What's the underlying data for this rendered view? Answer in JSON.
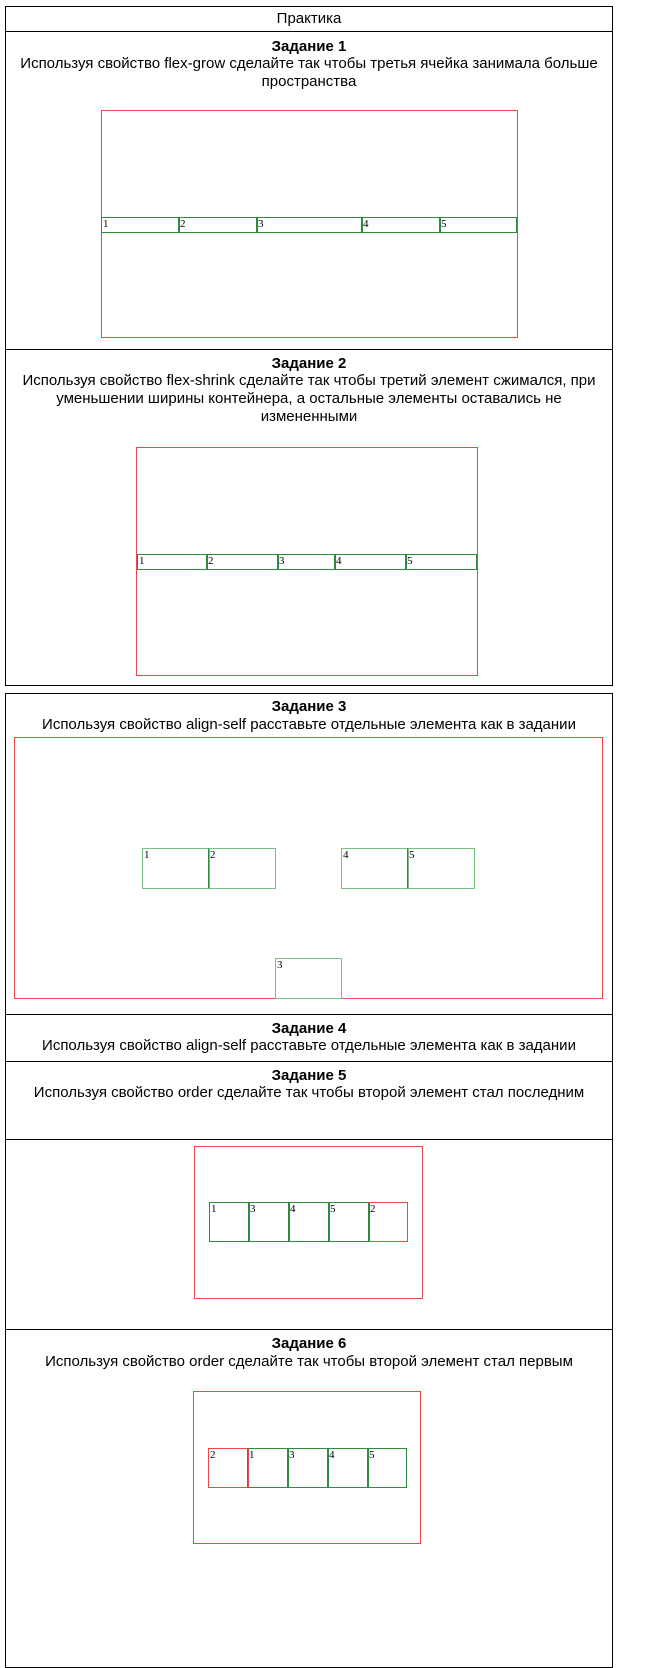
{
  "header": {
    "title": "Практика"
  },
  "tasks": [
    {
      "title": "Задание 1",
      "desc": "Используя свойство flex-grow сделайте так чтобы третья ячейка занимала больше пространства",
      "items": [
        "1",
        "2",
        "3",
        "4",
        "5"
      ]
    },
    {
      "title": "Задание 2",
      "desc": "Используя свойство flex-shrink сделайте так чтобы третий элемент сжимался, при уменьшении ширины контейнера, а остальные элементы оставались не измененными",
      "items": [
        "1",
        "2",
        "3",
        "4",
        "5"
      ]
    },
    {
      "title": "Задание 3",
      "desc": "Используя свойство align-self расставьте отдельные элемента как в задании",
      "items": [
        "1",
        "2",
        "4",
        "5",
        "3"
      ]
    },
    {
      "title": "Задание 4",
      "desc": "Используя свойство align-self расставьте отдельные элемента как в задании"
    },
    {
      "title": "Задание 5",
      "desc": "Используя свойство order сделайте так чтобы второй элемент стал последним",
      "items": [
        "1",
        "3",
        "4",
        "5",
        "2"
      ]
    },
    {
      "title": "Задание 6",
      "desc": "Используя свойство order сделайте так чтобы второй элемент стал первым",
      "items": [
        "2",
        "1",
        "3",
        "4",
        "5"
      ]
    }
  ],
  "colors": {
    "container": "#e8474c",
    "cell": "#2e8b3e",
    "cell_faint": "#7cbf82",
    "border": "#000000"
  }
}
